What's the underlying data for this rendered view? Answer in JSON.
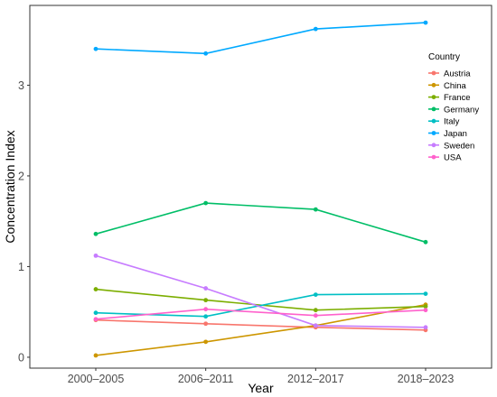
{
  "chart_data": {
    "type": "line",
    "title": "",
    "xlabel": "Year",
    "ylabel": "Concentration Index",
    "categories": [
      "2000–2005",
      "2006–2011",
      "2012–2017",
      "2018–2023"
    ],
    "ylim": [
      -0.12,
      3.88
    ],
    "yticks": [
      0,
      1,
      2,
      3
    ],
    "grid": false,
    "legend": {
      "title": "Country",
      "position": "right"
    },
    "series": [
      {
        "name": "Austria",
        "color": "#F8766D",
        "values": [
          0.41,
          0.37,
          0.33,
          0.3
        ]
      },
      {
        "name": "China",
        "color": "#CD9600",
        "values": [
          0.02,
          0.17,
          0.35,
          0.58
        ]
      },
      {
        "name": "France",
        "color": "#7CAE00",
        "values": [
          0.75,
          0.63,
          0.52,
          0.56
        ]
      },
      {
        "name": "Germany",
        "color": "#00BE67",
        "values": [
          1.36,
          1.7,
          1.63,
          1.27
        ]
      },
      {
        "name": "Italy",
        "color": "#00BFC4",
        "values": [
          0.49,
          0.45,
          0.69,
          0.7
        ]
      },
      {
        "name": "Japan",
        "color": "#00A9FF",
        "values": [
          3.4,
          3.35,
          3.62,
          3.69
        ]
      },
      {
        "name": "Sweden",
        "color": "#C77CFF",
        "values": [
          1.12,
          0.76,
          0.35,
          0.33
        ]
      },
      {
        "name": "USA",
        "color": "#FF61CC",
        "values": [
          0.42,
          0.53,
          0.46,
          0.52
        ]
      }
    ]
  }
}
